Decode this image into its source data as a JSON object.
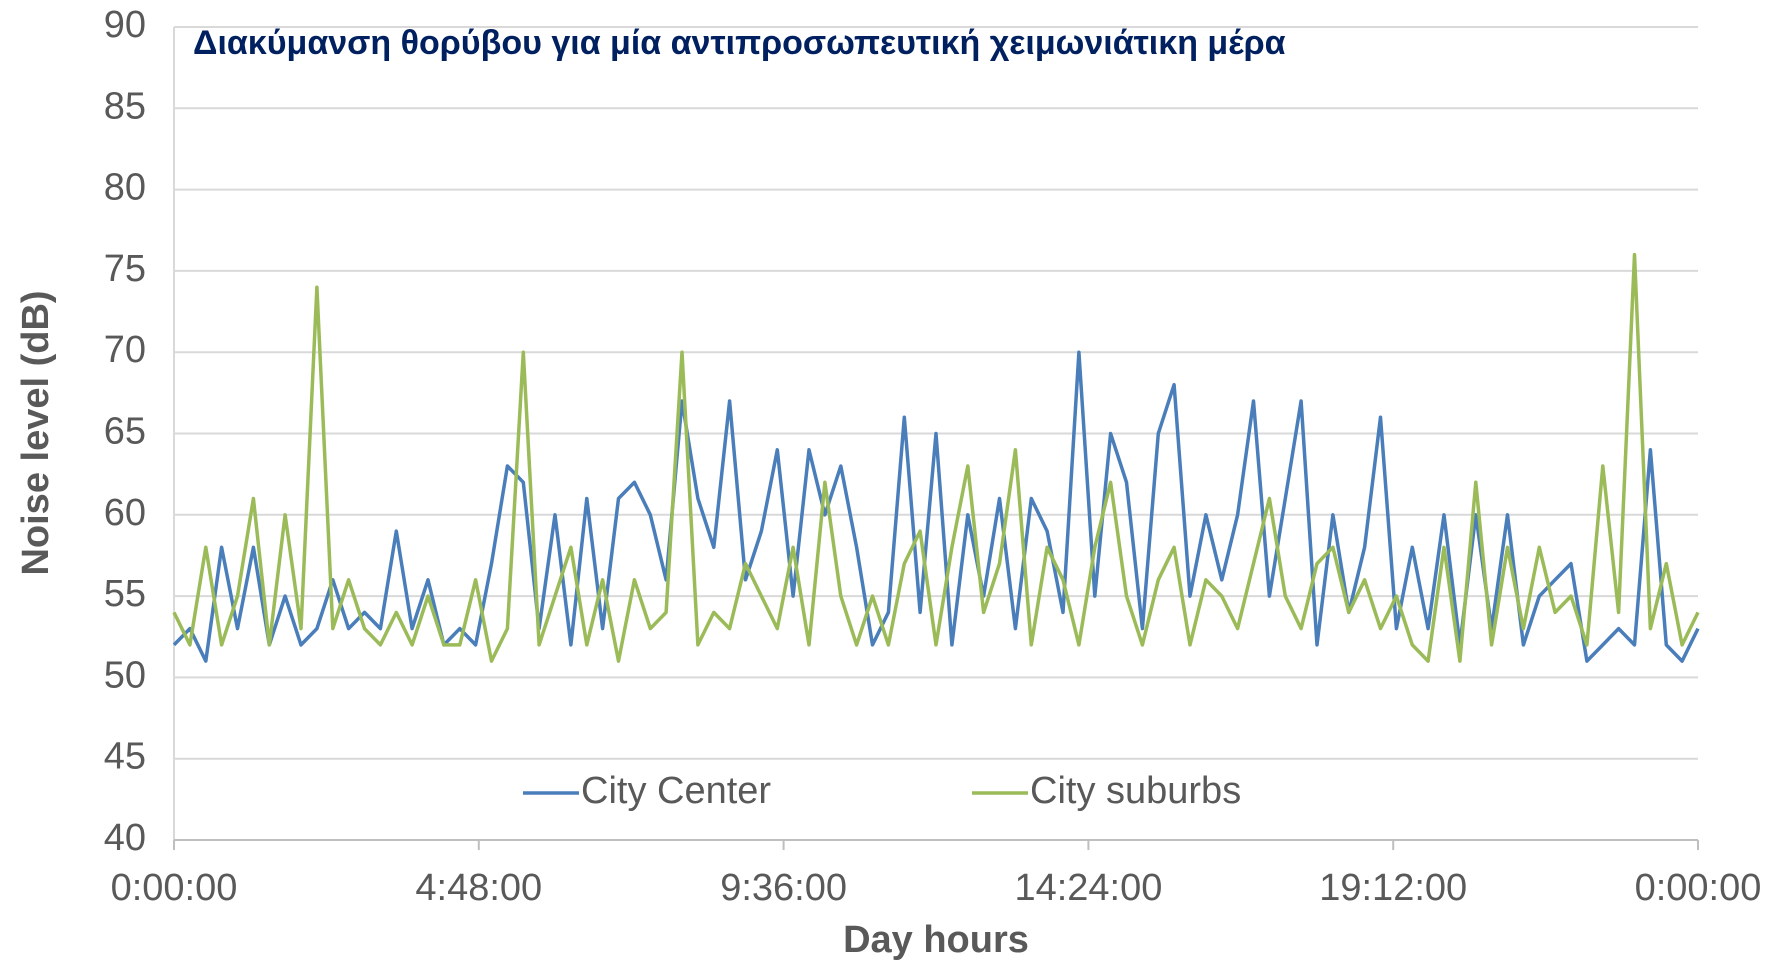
{
  "chart_data": {
    "type": "line",
    "title": "Διακύμανση θορύβου για μία αντιπροσωπευτική χειμωνιάτικη μέρα",
    "x_label": "Day hours",
    "y_label": "Noise level (dB)",
    "x": [
      0,
      0.25,
      0.5,
      0.75,
      1,
      1.25,
      1.5,
      1.75,
      2,
      2.25,
      2.5,
      2.75,
      3,
      3.25,
      3.5,
      3.75,
      4,
      4.25,
      4.5,
      4.75,
      5,
      5.25,
      5.5,
      5.75,
      6,
      6.25,
      6.5,
      6.75,
      7,
      7.25,
      7.5,
      7.75,
      8,
      8.25,
      8.5,
      8.75,
      9,
      9.25,
      9.5,
      9.75,
      10,
      10.25,
      10.5,
      10.75,
      11,
      11.25,
      11.5,
      11.75,
      12,
      12.25,
      12.5,
      12.75,
      13,
      13.25,
      13.5,
      13.75,
      14,
      14.25,
      14.5,
      14.75,
      15,
      15.25,
      15.5,
      15.75,
      16,
      16.25,
      16.5,
      16.75,
      17,
      17.25,
      17.5,
      17.75,
      18,
      18.25,
      18.5,
      18.75,
      19,
      19.25,
      19.5,
      19.75,
      20,
      20.25,
      20.5,
      20.75,
      21,
      21.25,
      21.5,
      21.75,
      22,
      22.25,
      22.5,
      22.75,
      23,
      23.25,
      23.5,
      23.75,
      24
    ],
    "series": [
      {
        "name": "City Center",
        "color": "#4a7ebb",
        "values": [
          52,
          53,
          51,
          58,
          53,
          58,
          52,
          55,
          52,
          53,
          56,
          53,
          54,
          53,
          59,
          53,
          56,
          52,
          53,
          52,
          57,
          63,
          62,
          53,
          60,
          52,
          61,
          53,
          61,
          62,
          60,
          56,
          67,
          61,
          58,
          67,
          56,
          59,
          64,
          55,
          64,
          60,
          63,
          58,
          52,
          54,
          66,
          54,
          65,
          52,
          60,
          55,
          61,
          53,
          61,
          59,
          54,
          70,
          55,
          65,
          62,
          53,
          65,
          68,
          55,
          60,
          56,
          60,
          67,
          55,
          61,
          67,
          52,
          60,
          54,
          58,
          66,
          53,
          58,
          53,
          60,
          52,
          60,
          53,
          60,
          52,
          55,
          56,
          57,
          51,
          52,
          53,
          52,
          64,
          52,
          51,
          53
        ]
      },
      {
        "name": "City suburbs",
        "color": "#9bbb59",
        "values": [
          54,
          52,
          58,
          52,
          55,
          61,
          52,
          60,
          53,
          74,
          53,
          56,
          53,
          52,
          54,
          52,
          55,
          52,
          52,
          56,
          51,
          53,
          70,
          52,
          55,
          58,
          52,
          56,
          51,
          56,
          53,
          54,
          70,
          52,
          54,
          53,
          57,
          55,
          53,
          58,
          52,
          62,
          55,
          52,
          55,
          52,
          57,
          59,
          52,
          58,
          63,
          54,
          57,
          64,
          52,
          58,
          56,
          52,
          58,
          62,
          55,
          52,
          56,
          58,
          52,
          56,
          55,
          53,
          57,
          61,
          55,
          53,
          57,
          58,
          54,
          56,
          53,
          55,
          52,
          51,
          58,
          51,
          62,
          52,
          58,
          53,
          58,
          54,
          55,
          52,
          63,
          54,
          76,
          53,
          57,
          52,
          54
        ]
      }
    ],
    "xlim": [
      0,
      24
    ],
    "xticks": [
      {
        "value": 0,
        "label": "0:00:00"
      },
      {
        "value": 4.8,
        "label": "4:48:00"
      },
      {
        "value": 9.6,
        "label": "9:36:00"
      },
      {
        "value": 14.4,
        "label": "14:24:00"
      },
      {
        "value": 19.2,
        "label": "19:12:00"
      },
      {
        "value": 24,
        "label": "0:00:00"
      }
    ],
    "ylim": [
      40,
      90
    ],
    "yticks": [
      40,
      45,
      50,
      55,
      60,
      65,
      70,
      75,
      80,
      85,
      90
    ],
    "grid": true,
    "legend": "lower center"
  }
}
